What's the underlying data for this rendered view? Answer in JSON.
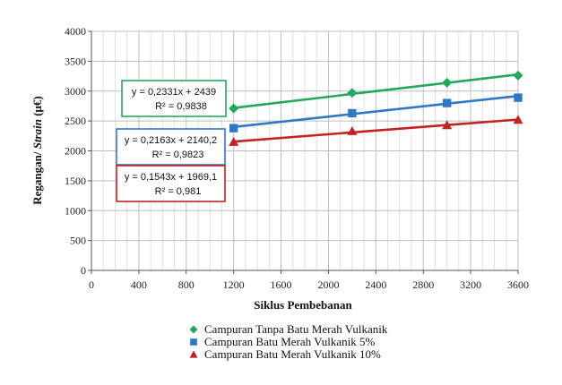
{
  "chart_data": {
    "type": "scatter",
    "x": [
      1200,
      2200,
      3000,
      3600
    ],
    "xlabel": "Siklus Pembebanan",
    "ylabel_main": "Regangan/ ",
    "ylabel_italic": "Strain",
    "ylabel_unit": " (μ€)",
    "xlim": [
      0,
      3600
    ],
    "ylim": [
      0,
      4000
    ],
    "xticks": [
      0,
      400,
      800,
      1200,
      1600,
      2000,
      2400,
      2800,
      3200,
      3600
    ],
    "yticks": [
      0,
      500,
      1000,
      1500,
      2000,
      2500,
      3000,
      3500,
      4000
    ],
    "grid": true,
    "legend_position": "bottom",
    "series": [
      {
        "name": "Campuran Tanpa Batu Merah Vulkanik",
        "color": "#22a85a",
        "marker": "diamond",
        "values": [
          2710,
          2970,
          3140,
          3260
        ],
        "trendline": {
          "slope": 0.2331,
          "intercept": 2439
        },
        "equation": "y = 0,2331x + 2439",
        "r2": "R² = 0,9838"
      },
      {
        "name": "Campuran Batu Merah Vulkanik 5%",
        "color": "#2f78c4",
        "marker": "square",
        "values": [
          2380,
          2630,
          2800,
          2890
        ],
        "trendline": {
          "slope": 0.2163,
          "intercept": 2140.2
        },
        "equation": "y = 0,2163x + 2140,2",
        "r2": "R² = 0,9823"
      },
      {
        "name": "Campuran Batu Merah Vulkanik 10%",
        "color": "#c42222",
        "marker": "triangle",
        "values": [
          2150,
          2330,
          2430,
          2520
        ],
        "trendline": {
          "slope": 0.1543,
          "intercept": 1969.1
        },
        "equation": "y = 0,1543x + 1969,1",
        "r2": "R² = 0,981"
      }
    ]
  }
}
